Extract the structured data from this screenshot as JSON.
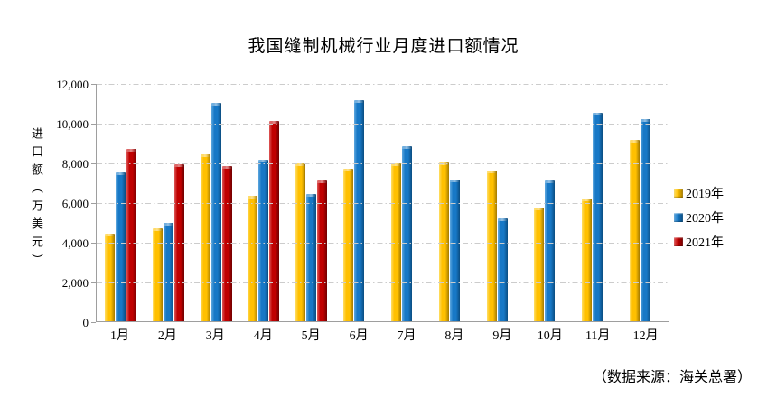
{
  "title": "我国缝制机械行业月度进口额情况",
  "source_note": "（数据来源：海关总署）",
  "y_axis": {
    "label": "进口额（万美元）",
    "tick_labels": [
      "12,000",
      "10,000",
      "8,000",
      "6,000",
      "4,000",
      "2,000",
      "0"
    ],
    "max": 12000,
    "min": 0,
    "step": 2000
  },
  "legend": {
    "position": "right",
    "items": [
      {
        "label": "2019年",
        "color": "#FFC000"
      },
      {
        "label": "2020年",
        "color": "#1778C6"
      },
      {
        "label": "2021年",
        "color": "#C00000"
      }
    ]
  },
  "colors": {
    "gridline": "#cccccc",
    "axis": "#9e9e9e",
    "background": "#ffffff"
  },
  "chart_data": {
    "type": "bar",
    "title": "我国缝制机械行业月度进口额情况",
    "xlabel": "",
    "ylabel": "进口额（万美元）",
    "ylim": [
      0,
      12000
    ],
    "ytick_step": 2000,
    "grid": true,
    "legend_position": "right",
    "categories": [
      "1月",
      "2月",
      "3月",
      "4月",
      "5月",
      "6月",
      "7月",
      "8月",
      "9月",
      "10月",
      "11月",
      "12月"
    ],
    "series": [
      {
        "name": "2019年",
        "color": "#FFC000",
        "color_light": "#FFDE66",
        "color_dark": "#A37A00",
        "values": [
          4400,
          4700,
          8400,
          6300,
          7950,
          7700,
          7950,
          8000,
          7600,
          5750,
          6200,
          9150
        ]
      },
      {
        "name": "2020年",
        "color": "#1778C6",
        "color_light": "#5FA8DF",
        "color_dark": "#0A4C80",
        "values": [
          7500,
          4950,
          11000,
          8150,
          6400,
          11150,
          8800,
          7150,
          5200,
          7100,
          10500,
          10200
        ]
      },
      {
        "name": "2021年",
        "color": "#C00000",
        "color_light": "#DE5A5A",
        "color_dark": "#700000",
        "values": [
          8700,
          7900,
          7800,
          10100,
          7100,
          null,
          null,
          null,
          null,
          null,
          null,
          null
        ]
      }
    ]
  }
}
